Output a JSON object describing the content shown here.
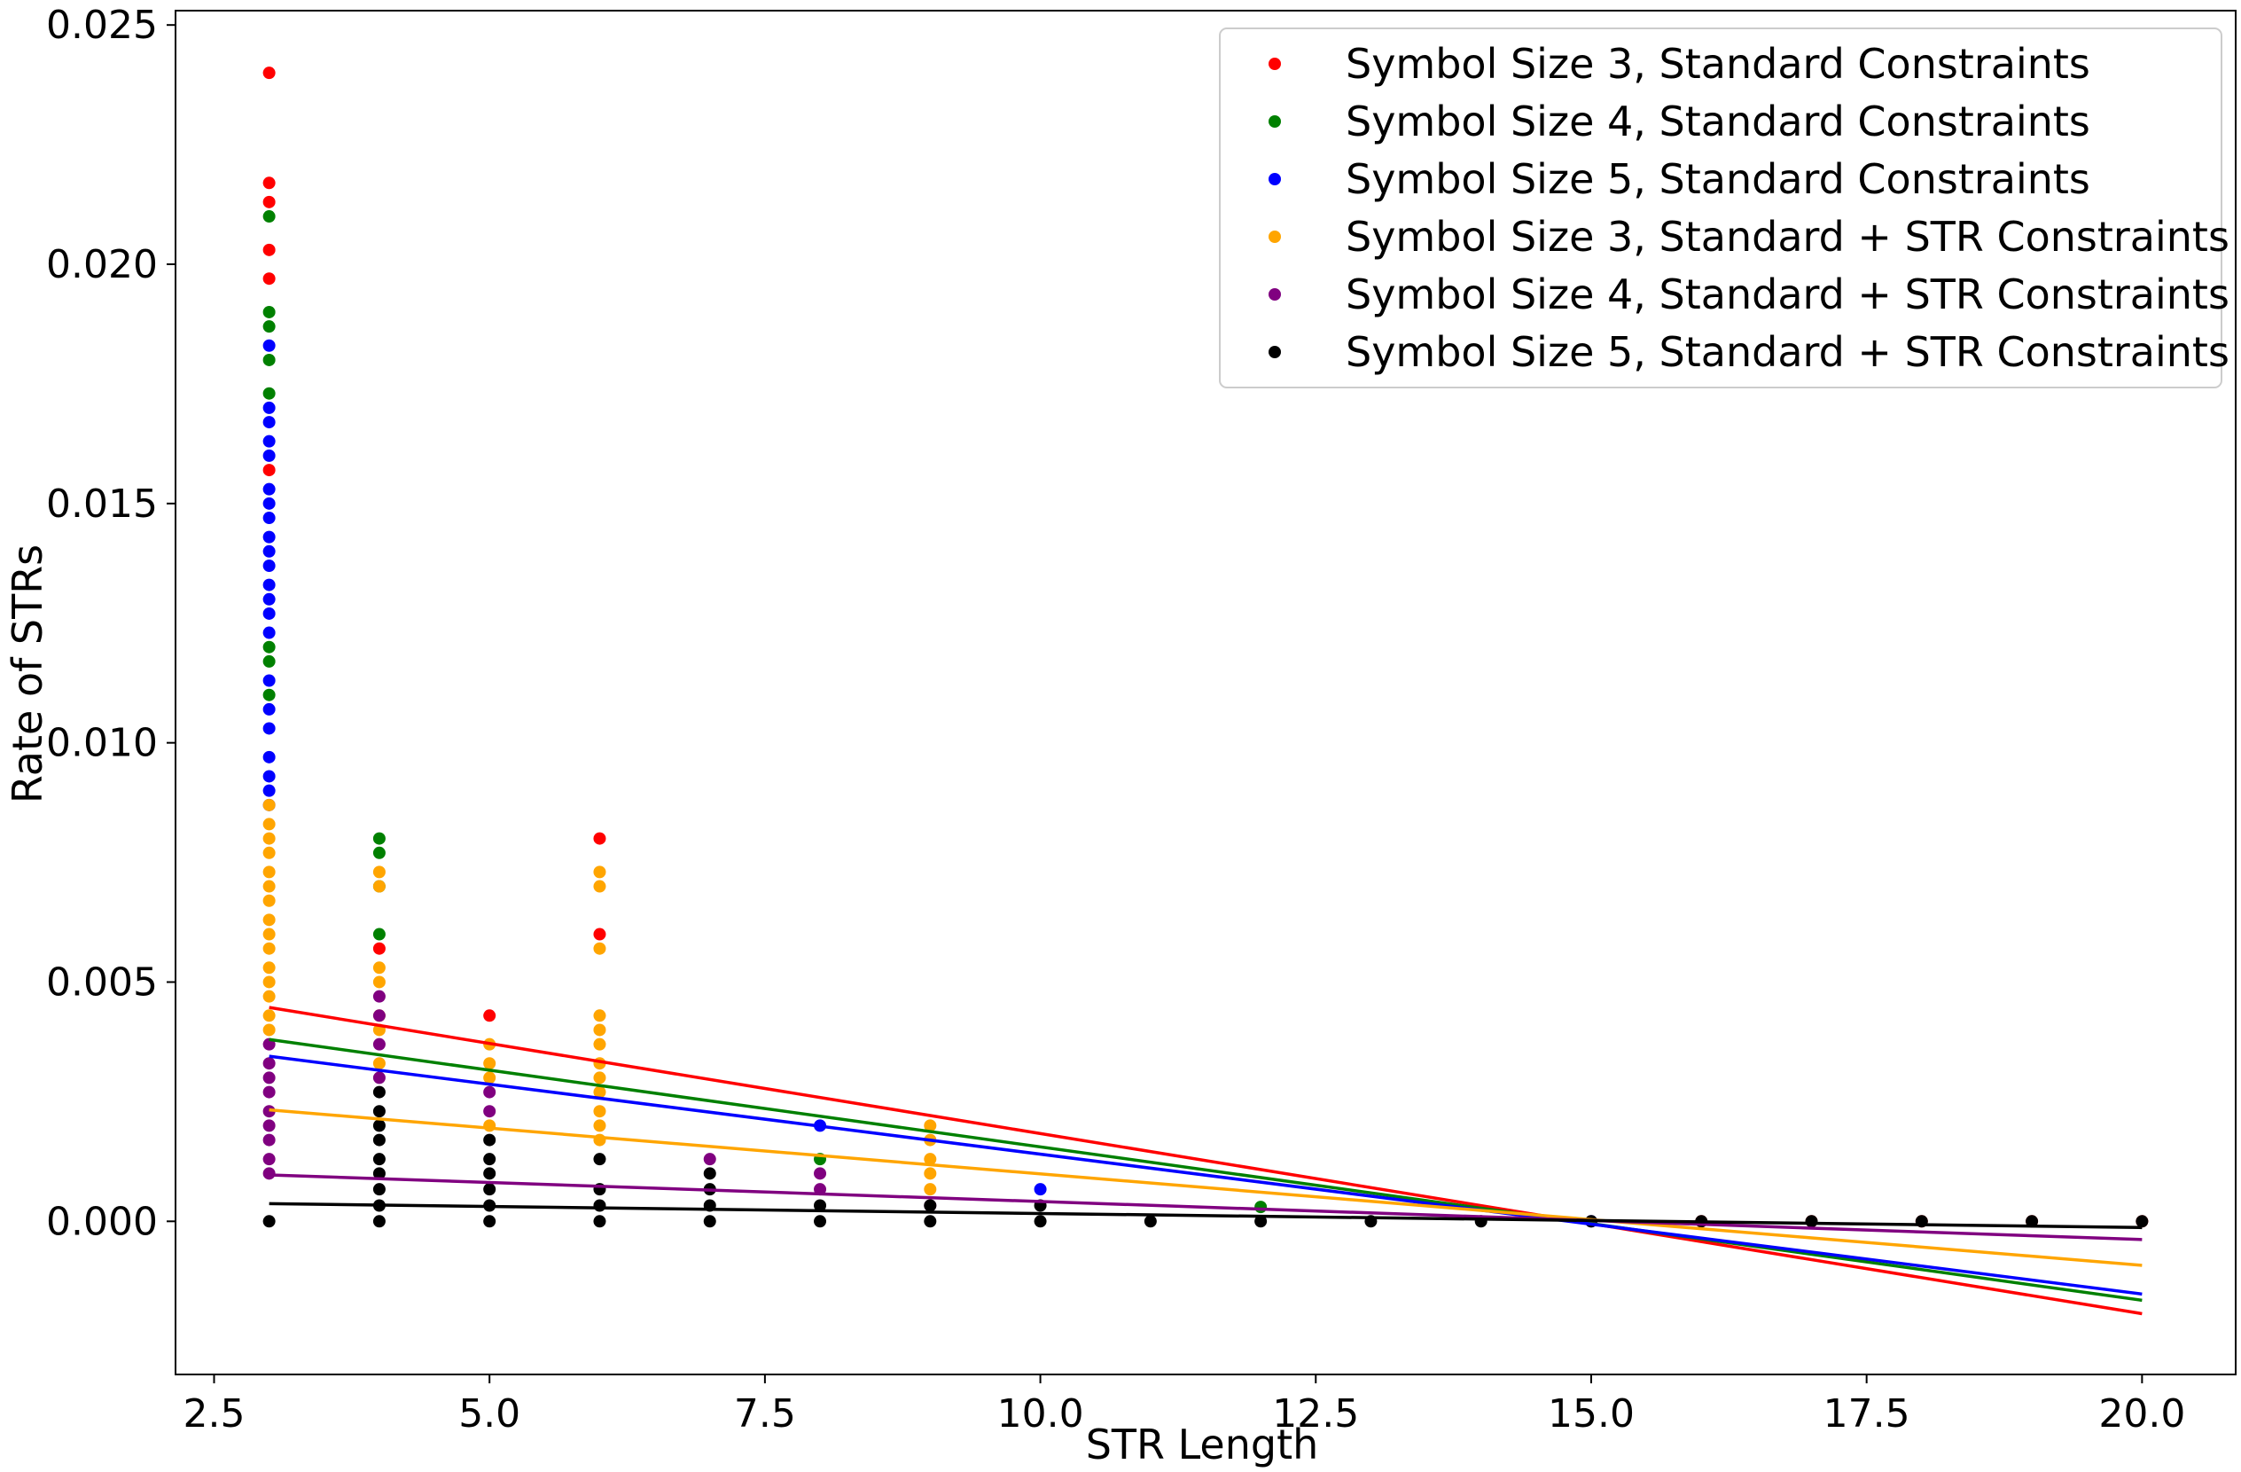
{
  "chart_data": {
    "type": "scatter",
    "title": "",
    "xlabel": "STR Length",
    "ylabel": "Rate of STRs",
    "xlim": [
      2.15,
      20.85
    ],
    "ylim": [
      -0.0032,
      0.0253
    ],
    "xticks": [
      2.5,
      5.0,
      7.5,
      10.0,
      12.5,
      15.0,
      17.5,
      20.0
    ],
    "xtick_labels": [
      "2.5",
      "5.0",
      "7.5",
      "10.0",
      "12.5",
      "15.0",
      "17.5",
      "20.0"
    ],
    "yticks": [
      0.0,
      0.005,
      0.01,
      0.015,
      0.02,
      0.025
    ],
    "ytick_labels": [
      "0.000",
      "0.005",
      "0.010",
      "0.015",
      "0.020",
      "0.025"
    ],
    "grid": false,
    "legend_position": "upper-right",
    "series": [
      {
        "name": "Symbol Size 3, Standard Constraints",
        "color": "#ff0000",
        "points": [
          [
            3,
            0.024
          ],
          [
            3,
            0.0217
          ],
          [
            3,
            0.0213
          ],
          [
            3,
            0.0203
          ],
          [
            3,
            0.0197
          ],
          [
            3,
            0.0157
          ],
          [
            4,
            0.0057
          ],
          [
            5,
            0.0043
          ],
          [
            6,
            0.008
          ],
          [
            6,
            0.006
          ],
          [
            16,
            0
          ],
          [
            17,
            0
          ],
          [
            18,
            0
          ],
          [
            19,
            0
          ],
          [
            20,
            0
          ]
        ],
        "trend": [
          [
            3,
            0.00447
          ],
          [
            20,
            -0.00193
          ]
        ]
      },
      {
        "name": "Symbol Size 4, Standard Constraints",
        "color": "#008000",
        "points": [
          [
            3,
            0.021
          ],
          [
            3,
            0.019
          ],
          [
            3,
            0.0187
          ],
          [
            3,
            0.018
          ],
          [
            3,
            0.0173
          ],
          [
            3,
            0.012
          ],
          [
            3,
            0.0117
          ],
          [
            3,
            0.011
          ],
          [
            4,
            0.008
          ],
          [
            4,
            0.0077
          ],
          [
            4,
            0.007
          ],
          [
            4,
            0.006
          ],
          [
            8,
            0.0013
          ],
          [
            12,
            0.0003
          ]
        ],
        "trend": [
          [
            3,
            0.0038
          ],
          [
            20,
            -0.00165
          ]
        ]
      },
      {
        "name": "Symbol Size 5, Standard Constraints",
        "color": "#0000ff",
        "points": [
          [
            3,
            0.0183
          ],
          [
            3,
            0.017
          ],
          [
            3,
            0.0167
          ],
          [
            3,
            0.0163
          ],
          [
            3,
            0.016
          ],
          [
            3,
            0.0153
          ],
          [
            3,
            0.015
          ],
          [
            3,
            0.0147
          ],
          [
            3,
            0.0143
          ],
          [
            3,
            0.014
          ],
          [
            3,
            0.0137
          ],
          [
            3,
            0.0133
          ],
          [
            3,
            0.013
          ],
          [
            3,
            0.0127
          ],
          [
            3,
            0.0123
          ],
          [
            3,
            0.0113
          ],
          [
            3,
            0.0107
          ],
          [
            3,
            0.0103
          ],
          [
            3,
            0.0097
          ],
          [
            3,
            0.0093
          ],
          [
            3,
            0.009
          ],
          [
            3,
            0.0087
          ],
          [
            8,
            0.002
          ],
          [
            10,
            0.00067
          ],
          [
            15,
            0
          ]
        ],
        "trend": [
          [
            3,
            0.00345
          ],
          [
            20,
            -0.00152
          ]
        ]
      },
      {
        "name": "Symbol Size 3, Standard + STR Constraints",
        "color": "#ffa500",
        "points": [
          [
            3,
            0.0087
          ],
          [
            3,
            0.0083
          ],
          [
            3,
            0.008
          ],
          [
            3,
            0.0077
          ],
          [
            3,
            0.0073
          ],
          [
            3,
            0.007
          ],
          [
            3,
            0.0067
          ],
          [
            3,
            0.0063
          ],
          [
            3,
            0.006
          ],
          [
            3,
            0.0057
          ],
          [
            3,
            0.0053
          ],
          [
            3,
            0.005
          ],
          [
            3,
            0.0047
          ],
          [
            3,
            0.0043
          ],
          [
            3,
            0.004
          ],
          [
            4,
            0.0073
          ],
          [
            4,
            0.007
          ],
          [
            4,
            0.0053
          ],
          [
            4,
            0.005
          ],
          [
            4,
            0.0043
          ],
          [
            4,
            0.004
          ],
          [
            4,
            0.0033
          ],
          [
            5,
            0.0037
          ],
          [
            5,
            0.0033
          ],
          [
            5,
            0.003
          ],
          [
            5,
            0.002
          ],
          [
            6,
            0.0073
          ],
          [
            6,
            0.007
          ],
          [
            6,
            0.0057
          ],
          [
            6,
            0.0043
          ],
          [
            6,
            0.004
          ],
          [
            6,
            0.0037
          ],
          [
            6,
            0.0033
          ],
          [
            6,
            0.003
          ],
          [
            6,
            0.0027
          ],
          [
            6,
            0.0023
          ],
          [
            6,
            0.002
          ],
          [
            6,
            0.0017
          ],
          [
            9,
            0.002
          ],
          [
            9,
            0.0017
          ],
          [
            9,
            0.0013
          ],
          [
            9,
            0.001
          ],
          [
            9,
            0.00067
          ]
        ],
        "trend": [
          [
            3,
            0.00233
          ],
          [
            20,
            -0.00092
          ]
        ]
      },
      {
        "name": "Symbol Size 4, Standard + STR Constraints",
        "color": "#800080",
        "points": [
          [
            3,
            0.0037
          ],
          [
            3,
            0.0033
          ],
          [
            3,
            0.003
          ],
          [
            3,
            0.0027
          ],
          [
            3,
            0.0023
          ],
          [
            3,
            0.002
          ],
          [
            3,
            0.0017
          ],
          [
            3,
            0.0013
          ],
          [
            3,
            0.001
          ],
          [
            4,
            0.0047
          ],
          [
            4,
            0.0043
          ],
          [
            4,
            0.0037
          ],
          [
            4,
            0.003
          ],
          [
            5,
            0.0027
          ],
          [
            5,
            0.0023
          ],
          [
            7,
            0.0013
          ],
          [
            8,
            0.001
          ],
          [
            8,
            0.00067
          ],
          [
            9,
            0.00033
          ]
        ],
        "trend": [
          [
            3,
            0.00097
          ],
          [
            20,
            -0.00038
          ]
        ]
      },
      {
        "name": "Symbol Size 5, Standard + STR Constraints",
        "color": "#000000",
        "points": [
          [
            3,
            0
          ],
          [
            4,
            0.0027
          ],
          [
            4,
            0.0023
          ],
          [
            4,
            0.002
          ],
          [
            4,
            0.0017
          ],
          [
            4,
            0.0013
          ],
          [
            4,
            0.001
          ],
          [
            4,
            0.00067
          ],
          [
            4,
            0.00033
          ],
          [
            4,
            0
          ],
          [
            5,
            0.0017
          ],
          [
            5,
            0.0013
          ],
          [
            5,
            0.001
          ],
          [
            5,
            0.00067
          ],
          [
            5,
            0.00033
          ],
          [
            5,
            0
          ],
          [
            6,
            0.0013
          ],
          [
            6,
            0.00067
          ],
          [
            6,
            0.00033
          ],
          [
            6,
            0
          ],
          [
            7,
            0.001
          ],
          [
            7,
            0.00067
          ],
          [
            7,
            0.00033
          ],
          [
            7,
            0
          ],
          [
            8,
            0.00033
          ],
          [
            8,
            0
          ],
          [
            9,
            0.00033
          ],
          [
            9,
            0
          ],
          [
            10,
            0.00033
          ],
          [
            10,
            0
          ],
          [
            11,
            0
          ],
          [
            12,
            0
          ],
          [
            13,
            0
          ],
          [
            14,
            0
          ],
          [
            15,
            0
          ],
          [
            16,
            0
          ],
          [
            17,
            0
          ],
          [
            18,
            0
          ],
          [
            19,
            0
          ],
          [
            20,
            0
          ]
        ],
        "trend": [
          [
            3,
            0.00037
          ],
          [
            20,
            -0.00013
          ]
        ]
      }
    ]
  }
}
